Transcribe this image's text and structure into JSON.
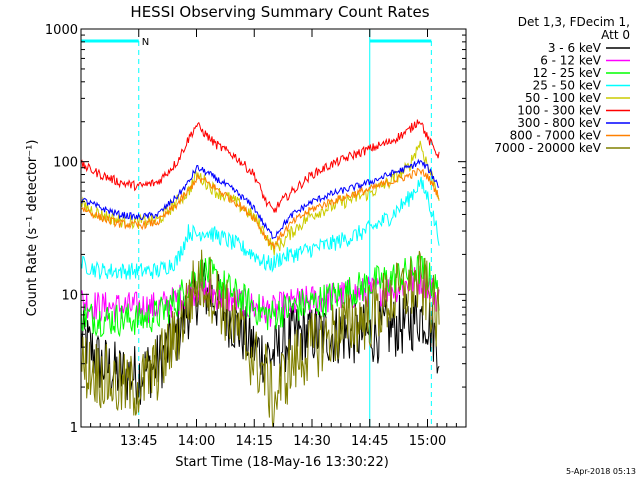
{
  "chart_data": {
    "type": "line",
    "title": "HESSI Observing Summary Count Rates",
    "xlabel": "Start Time (18-May-16 13:30:22)",
    "ylabel": "Count Rate (s⁻¹ detector⁻¹)",
    "x_unit": "minutes after 13:30:22",
    "xlim": [
      0,
      100
    ],
    "ylim": [
      1,
      1000
    ],
    "yscale": "log",
    "x_ticks": [
      {
        "label": "13:45",
        "value": 15
      },
      {
        "label": "14:00",
        "value": 30
      },
      {
        "label": "14:15",
        "value": 45
      },
      {
        "label": "14:30",
        "value": 60
      },
      {
        "label": "14:45",
        "value": 75
      },
      {
        "label": "15:00",
        "value": 90
      }
    ],
    "y_ticks": [
      {
        "label": "1",
        "value": 1
      },
      {
        "label": "10",
        "value": 10
      },
      {
        "label": "100",
        "value": 100
      },
      {
        "label": "1000",
        "value": 1000
      }
    ],
    "legend_title": [
      "Det 1,3, FDecim 1,",
      "Att 0"
    ],
    "legend_position": "right",
    "annotations": [
      {
        "text": "N",
        "x": 15
      }
    ],
    "night_intervals": [
      [
        0,
        15
      ],
      [
        75,
        91
      ]
    ],
    "saa_markers": [
      15,
      91
    ],
    "x": [
      0,
      5,
      10,
      15,
      20,
      25,
      28,
      30,
      32,
      35,
      40,
      45,
      48,
      50,
      52,
      55,
      60,
      65,
      70,
      75,
      80,
      85,
      88,
      90,
      93
    ],
    "series": [
      {
        "name": "3 - 6 keV",
        "color": "#000000",
        "values": [
          5,
          3,
          2.5,
          2.5,
          3,
          5,
          8,
          10,
          11,
          9,
          6,
          4,
          3.5,
          3.5,
          4,
          5,
          5,
          5,
          5,
          5,
          5.5,
          6,
          7,
          6.5,
          4
        ]
      },
      {
        "name": "6 - 12 keV",
        "color": "#ff00ff",
        "values": [
          9,
          8,
          8,
          8,
          8,
          9,
          10,
          11,
          11,
          10,
          9,
          8,
          7.5,
          7.5,
          8,
          8.5,
          9,
          9.5,
          10,
          10.5,
          11,
          12,
          13,
          12,
          9
        ]
      },
      {
        "name": "12 - 25 keV",
        "color": "#00ff00",
        "values": [
          7,
          6.5,
          6.5,
          6.5,
          7,
          9,
          12,
          14,
          15,
          13,
          10,
          8,
          7,
          7,
          7.5,
          8,
          8.5,
          9.5,
          10.5,
          12,
          13,
          14.5,
          15.5,
          14,
          10
        ]
      },
      {
        "name": "25 - 50 keV",
        "color": "#00ffff",
        "values": [
          17,
          15,
          15,
          15,
          15,
          18,
          30,
          28,
          30,
          28,
          24,
          20,
          17,
          17,
          19,
          20,
          22,
          24,
          27,
          31,
          38,
          52,
          70,
          55,
          27
        ]
      },
      {
        "name": "50 - 100 keV",
        "color": "#cccc00",
        "values": [
          48,
          40,
          36,
          35,
          36,
          50,
          60,
          80,
          72,
          60,
          50,
          38,
          28,
          22,
          24,
          30,
          40,
          46,
          52,
          58,
          70,
          90,
          140,
          95,
          55
        ]
      },
      {
        "name": "100 - 300 keV",
        "color": "#ff0000",
        "values": [
          95,
          80,
          70,
          65,
          70,
          100,
          150,
          190,
          165,
          135,
          110,
          80,
          50,
          42,
          50,
          60,
          80,
          95,
          110,
          125,
          140,
          170,
          210,
          150,
          110
        ]
      },
      {
        "name": "300 - 800 keV",
        "color": "#0000ff",
        "values": [
          52,
          45,
          40,
          38,
          40,
          55,
          70,
          90,
          85,
          75,
          60,
          45,
          32,
          27,
          32,
          40,
          50,
          57,
          63,
          70,
          80,
          90,
          100,
          90,
          65
        ]
      },
      {
        "name": "800 - 7000 keV",
        "color": "#ff8000",
        "values": [
          45,
          38,
          34,
          33,
          35,
          48,
          60,
          75,
          72,
          63,
          50,
          38,
          27,
          23,
          28,
          35,
          44,
          50,
          56,
          62,
          70,
          78,
          85,
          78,
          55
        ]
      },
      {
        "name": "7000 - 20000 keV",
        "color": "#808000",
        "values": [
          3,
          2.5,
          2,
          2,
          2.8,
          5,
          9,
          12,
          13,
          10,
          6,
          3.2,
          2.5,
          1.5,
          2.2,
          3,
          4,
          5,
          6,
          7,
          9,
          11,
          12,
          10,
          6
        ]
      }
    ]
  },
  "footer": {
    "timestamp": "5-Apr-2018 05:13"
  }
}
